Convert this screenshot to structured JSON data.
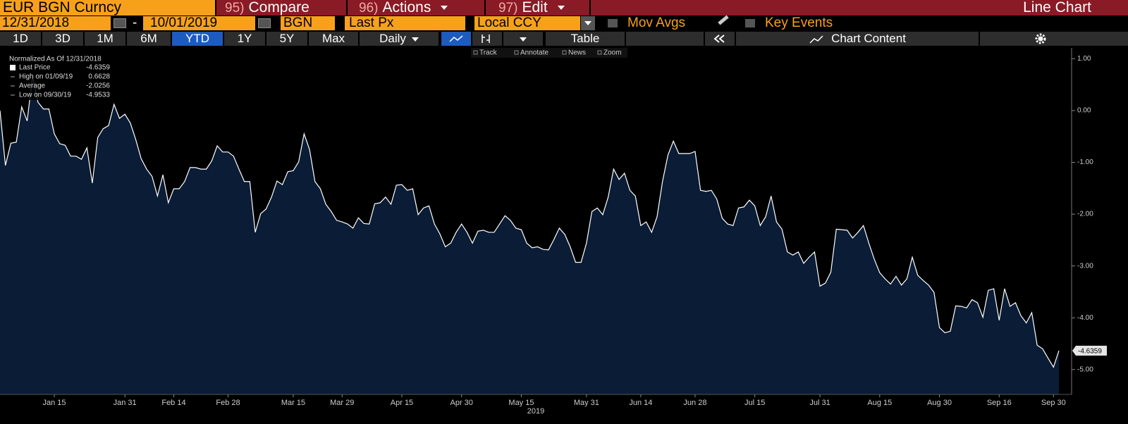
{
  "toolbar": {
    "security": "EUR BGN Curncy",
    "menus": [
      {
        "num": "95)",
        "label": "Compare"
      },
      {
        "num": "96)",
        "label": "Actions"
      },
      {
        "num": "97)",
        "label": "Edit"
      }
    ],
    "view": "Line Chart"
  },
  "settings": {
    "start_date": "12/31/2018",
    "separator": "-",
    "end_date": "10/01/2019",
    "currency": "BGN",
    "field": "Last Px",
    "currency_mode": "Local CCY",
    "options": [
      "Mov Avgs",
      "Key Events"
    ]
  },
  "ranges": {
    "buttons": [
      "1D",
      "3D",
      "1M",
      "6M",
      "YTD",
      "1Y",
      "5Y",
      "Max"
    ],
    "selected": "YTD",
    "frequency": "Daily",
    "table": "Table",
    "content": "Chart Content"
  },
  "chart_tools": [
    "Track",
    "Annotate",
    "News",
    "Zoom"
  ],
  "legend": {
    "title": "Normalized As Of 12/31/2018",
    "rows": [
      {
        "label": "Last Price",
        "value": -4.6359
      },
      {
        "label": "High on 01/09/19",
        "value": 0.6628
      },
      {
        "label": "Average",
        "value": -2.0256
      },
      {
        "label": "Low on 09/30/19",
        "value": -4.9533
      }
    ]
  },
  "chart_data": {
    "type": "area",
    "xlabel": "2019",
    "color": "#ffffff",
    "fill": "#0a1c36",
    "ylim": [
      -5.48,
      1.21
    ],
    "yticks": [
      {
        "value": 1,
        "label": "1.00"
      },
      {
        "value": 0,
        "label": "0.00"
      },
      {
        "value": -1,
        "label": "-1.00"
      },
      {
        "value": -2,
        "label": "-2.00"
      },
      {
        "value": -3,
        "label": "-3.00"
      },
      {
        "value": -4,
        "label": "-4.00"
      },
      {
        "value": -5,
        "label": "-5.00"
      }
    ],
    "grid": false,
    "categories": [
      null,
      null,
      null,
      null,
      null,
      null,
      null,
      null,
      null,
      null,
      "Jan 15",
      null,
      null,
      null,
      null,
      null,
      null,
      null,
      null,
      null,
      null,
      null,
      null,
      "Jan 31",
      null,
      null,
      null,
      null,
      null,
      null,
      null,
      null,
      "Feb 14",
      null,
      null,
      null,
      null,
      null,
      null,
      null,
      null,
      null,
      "Feb 28",
      null,
      null,
      null,
      null,
      null,
      null,
      null,
      null,
      null,
      null,
      null,
      "Mar 15",
      null,
      null,
      null,
      null,
      null,
      null,
      null,
      null,
      "Mar 29",
      null,
      null,
      null,
      null,
      null,
      null,
      null,
      null,
      null,
      null,
      "Apr 15",
      null,
      null,
      null,
      null,
      null,
      null,
      null,
      null,
      null,
      null,
      "Apr 30",
      null,
      null,
      null,
      null,
      null,
      null,
      null,
      null,
      null,
      null,
      "May 15",
      null,
      null,
      null,
      null,
      null,
      null,
      null,
      null,
      null,
      null,
      null,
      "May 31",
      null,
      null,
      null,
      null,
      null,
      null,
      null,
      null,
      null,
      "Jun 14",
      null,
      null,
      null,
      null,
      null,
      null,
      null,
      null,
      null,
      "Jun 28",
      null,
      null,
      null,
      null,
      null,
      null,
      null,
      null,
      null,
      null,
      "Jul 15",
      null,
      null,
      null,
      null,
      null,
      null,
      null,
      null,
      null,
      null,
      null,
      "Jul 31",
      null,
      null,
      null,
      null,
      null,
      null,
      null,
      null,
      null,
      null,
      "Aug 15",
      null,
      null,
      null,
      null,
      null,
      null,
      null,
      null,
      null,
      null,
      "Aug 30",
      null,
      null,
      null,
      null,
      null,
      null,
      null,
      null,
      null,
      null,
      "Sep 16",
      null,
      null,
      null,
      null,
      null,
      null,
      null,
      null,
      null,
      "Sep 30",
      null
    ],
    "values": [
      0,
      -1.06,
      -0.63,
      -0.61,
      0.07,
      -0.2,
      0.6628,
      0.16,
      0.03,
      0.03,
      -0.45,
      -0.64,
      -0.67,
      -0.88,
      -0.88,
      -0.94,
      -0.72,
      -1.4,
      -0.52,
      -0.35,
      -0.29,
      0.12,
      -0.15,
      -0.07,
      -0.24,
      -0.56,
      -0.93,
      -1.13,
      -1.27,
      -1.65,
      -1.24,
      -1.78,
      -1.51,
      -1.51,
      -1.37,
      -1.1,
      -1.1,
      -1.13,
      -1.13,
      -0.97,
      -0.68,
      -0.8,
      -0.8,
      -0.88,
      -1.13,
      -1.37,
      -1.37,
      -2.35,
      -1.99,
      -1.9,
      -1.67,
      -1.36,
      -1.43,
      -1.18,
      -1.16,
      -0.99,
      -0.45,
      -0.75,
      -1.37,
      -1.51,
      -1.81,
      -1.95,
      -2.12,
      -2.15,
      -2.19,
      -2.27,
      -2.07,
      -2.18,
      -2.19,
      -1.8,
      -1.78,
      -1.67,
      -1.81,
      -1.44,
      -1.43,
      -1.54,
      -1.51,
      -2.01,
      -1.88,
      -1.84,
      -2.19,
      -2.38,
      -2.63,
      -2.56,
      -2.35,
      -2.19,
      -2.35,
      -2.56,
      -2.33,
      -2.31,
      -2.35,
      -2.35,
      -2.19,
      -2.03,
      -2.12,
      -2.27,
      -2.3,
      -2.56,
      -2.65,
      -2.63,
      -2.68,
      -2.69,
      -2.49,
      -2.27,
      -2.39,
      -2.63,
      -2.93,
      -2.93,
      -2.56,
      -1.95,
      -1.88,
      -2.01,
      -1.67,
      -1.13,
      -1.33,
      -1.21,
      -1.54,
      -1.65,
      -2.22,
      -2.15,
      -2.35,
      -2.05,
      -1.37,
      -0.86,
      -0.59,
      -0.83,
      -0.83,
      -0.83,
      -0.79,
      -1.54,
      -1.56,
      -1.54,
      -1.71,
      -2.08,
      -2.19,
      -2.22,
      -1.88,
      -1.86,
      -1.73,
      -1.84,
      -2.22,
      -2.05,
      -1.65,
      -2.15,
      -2.29,
      -2.73,
      -2.79,
      -2.73,
      -2.95,
      -2.83,
      -2.73,
      -3.39,
      -3.33,
      -3.12,
      -2.29,
      -2.3,
      -2.31,
      -2.46,
      -2.35,
      -2.22,
      -2.56,
      -2.87,
      -3.13,
      -3.25,
      -3.35,
      -3.2,
      -3.37,
      -3.25,
      -2.83,
      -3.18,
      -3.28,
      -3.37,
      -3.51,
      -4.19,
      -4.29,
      -4.26,
      -3.77,
      -3.78,
      -3.81,
      -3.65,
      -3.71,
      -3.99,
      -3.47,
      -3.44,
      -4.05,
      -3.44,
      -3.78,
      -3.71,
      -3.96,
      -4.1,
      -3.9,
      -4.53,
      -4.6,
      -4.78,
      -4.9533,
      -4.6359
    ]
  }
}
